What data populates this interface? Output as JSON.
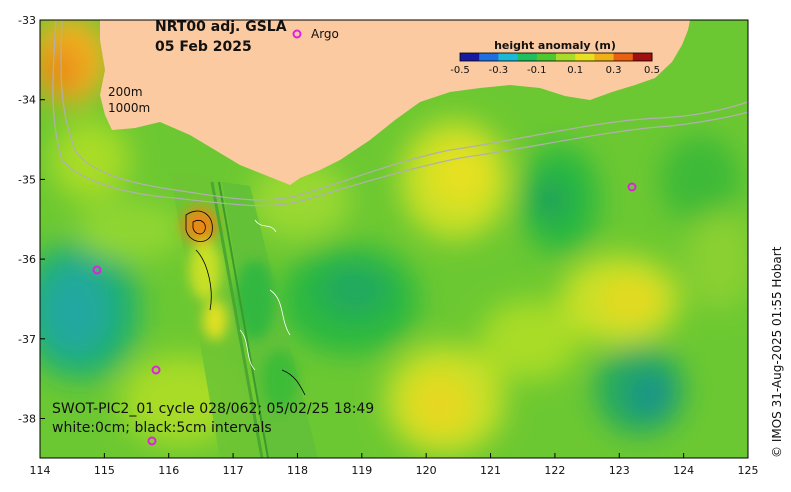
{
  "map": {
    "title": "NRT00 adj. GSLA",
    "date": "05 Feb 2025",
    "legend_argo": "Argo",
    "contour_label_200": "200m",
    "contour_label_1000": "1000m",
    "swath_caption": "SWOT-PIC2_01 cycle 028/062; 05/02/25 18:49",
    "contour_caption": "white:0cm; black:5cm intervals",
    "credit": "© IMOS 31-Aug-2025 01:55 Hobart",
    "colorbar": {
      "title": "height anomaly (m)",
      "ticks": [
        "-0.5",
        "-0.3",
        "-0.1",
        "0.1",
        "0.3",
        "0.5"
      ],
      "colors": [
        "#1a1aa0",
        "#1f6fe0",
        "#1bb8d8",
        "#1fbf60",
        "#4fc830",
        "#a8dc28",
        "#e8e020",
        "#f0b018",
        "#e86010",
        "#a01010"
      ]
    },
    "x_axis": {
      "ticks": [
        "114",
        "115",
        "116",
        "117",
        "118",
        "119",
        "120",
        "121",
        "122",
        "123",
        "124",
        "125"
      ]
    },
    "y_axis": {
      "ticks": [
        "-33",
        "-34",
        "-35",
        "-36",
        "-37",
        "-38"
      ]
    },
    "colors": {
      "land": "#fccaa0",
      "ocean_base": "#6cc832",
      "argo_marker": "#e020e0"
    }
  }
}
